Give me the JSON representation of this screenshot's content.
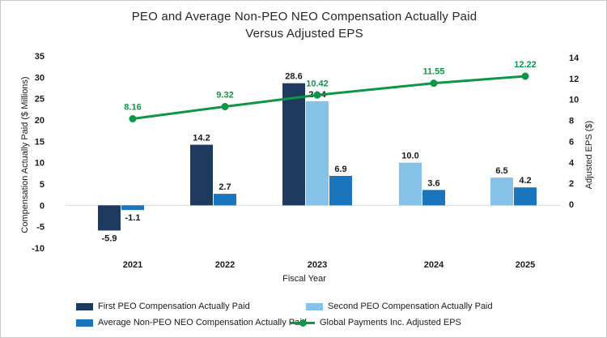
{
  "title": {
    "line1": "PEO and Average Non-PEO NEO Compensation Actually Paid",
    "line2": "Versus Adjusted EPS"
  },
  "axes": {
    "left": {
      "title": "Compensation Actually Paid ($ Millions)",
      "ticks": [
        35,
        30,
        25,
        20,
        15,
        10,
        5,
        0,
        -5,
        -10
      ]
    },
    "right": {
      "title": "Adjusted EPS ($)",
      "ticks": [
        14,
        12,
        10,
        8,
        6,
        4,
        2,
        0
      ]
    },
    "x": {
      "title": "Fiscal Year"
    }
  },
  "chart_data": {
    "type": "bar+line",
    "title": "PEO and Average Non-PEO NEO Compensation Actually Paid Versus Adjusted EPS",
    "categories": [
      "2021",
      "2022",
      "2023",
      "2024",
      "2025"
    ],
    "series": [
      {
        "name": "First PEO Compensation Actually Paid",
        "type": "bar",
        "axis": "left",
        "color": "#1F3A5F",
        "values": [
          -5.9,
          14.2,
          28.6,
          null,
          null
        ]
      },
      {
        "name": "Second PEO Compensation Actually Paid",
        "type": "bar",
        "axis": "left",
        "color": "#86C2E8",
        "values": [
          null,
          null,
          24.4,
          10.0,
          6.5
        ]
      },
      {
        "name": "Average Non-PEO NEO Compensation Actually Paid",
        "type": "bar",
        "axis": "left",
        "color": "#1B75BC",
        "values": [
          -1.1,
          2.7,
          6.9,
          3.6,
          4.2
        ]
      },
      {
        "name": "Global Payments Inc. Adjusted EPS",
        "type": "line",
        "axis": "right",
        "color": "#0E9648",
        "values": [
          8.16,
          9.32,
          10.42,
          11.55,
          12.22
        ]
      }
    ],
    "xlabel": "Fiscal Year",
    "ylabel_left": "Compensation Actually Paid ($ Millions)",
    "ylabel_right": "Adjusted EPS ($)",
    "ylim_left": [
      -10,
      35
    ],
    "ylim_right": [
      0,
      14
    ],
    "grid": false,
    "legend_position": "bottom",
    "colors": {
      "zero_line": "#D9D9D9",
      "text": "#1A1A1A",
      "eps_label": "#0E9648",
      "frame_border": "#C9C9C9",
      "background": "#FFFFFF"
    }
  }
}
